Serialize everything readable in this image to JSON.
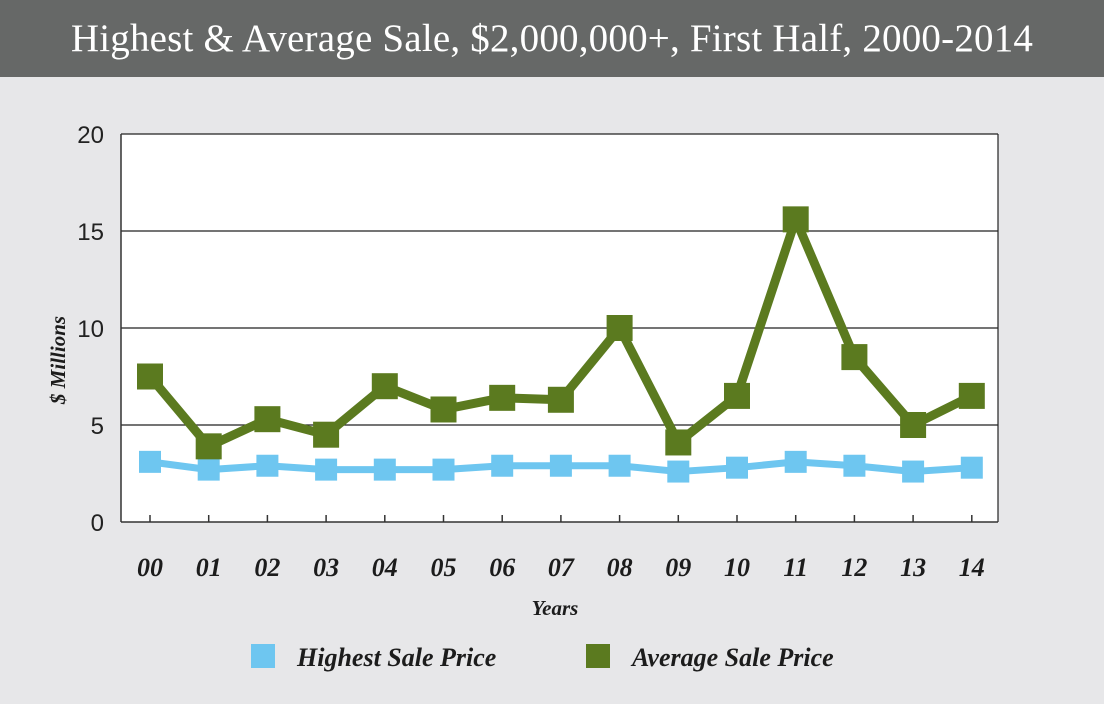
{
  "chart_data": {
    "type": "line",
    "title": "Highest & Average Sale, $2,000,000+, First Half, 2000-2014",
    "xlabel": "Years",
    "ylabel": "$ Millions",
    "ylim": [
      0,
      20
    ],
    "yticks": [
      "0",
      "5",
      "10",
      "15",
      "20"
    ],
    "grid": true,
    "legend_position": "bottom",
    "categories": [
      "00",
      "01",
      "02",
      "03",
      "04",
      "05",
      "06",
      "07",
      "08",
      "09",
      "10",
      "11",
      "12",
      "13",
      "14"
    ],
    "series": [
      {
        "name": "Highest Sale Price",
        "color": "#6ec6f0",
        "values": [
          3.1,
          2.7,
          2.9,
          2.7,
          2.7,
          2.7,
          2.9,
          2.9,
          2.9,
          2.6,
          2.8,
          3.1,
          2.9,
          2.6,
          2.8
        ]
      },
      {
        "name": "Average Sale Price",
        "color": "#5b7a1f",
        "values": [
          7.5,
          3.9,
          5.3,
          4.5,
          7.0,
          5.8,
          6.4,
          6.3,
          10.0,
          4.1,
          6.5,
          15.6,
          8.5,
          5.0,
          6.5
        ]
      }
    ]
  }
}
